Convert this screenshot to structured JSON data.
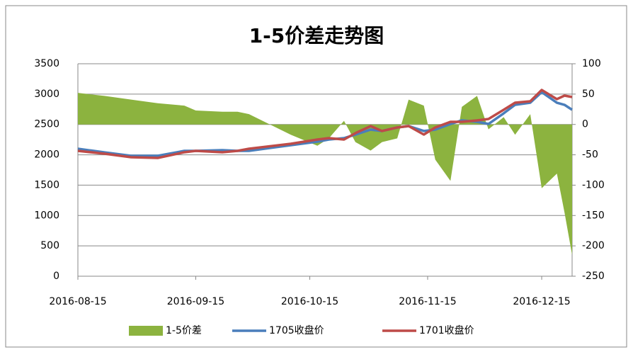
{
  "chart_data": {
    "type": "line",
    "title": "1-5价差走势图",
    "x": [
      "2016-08-15",
      "2016-08-22",
      "2016-08-29",
      "2016-09-05",
      "2016-09-12",
      "2016-09-15",
      "2016-09-22",
      "2016-09-26",
      "2016-09-29",
      "2016-10-10",
      "2016-10-17",
      "2016-10-20",
      "2016-10-24",
      "2016-10-27",
      "2016-10-31",
      "2016-11-03",
      "2016-11-07",
      "2016-11-10",
      "2016-11-14",
      "2016-11-17",
      "2016-11-21",
      "2016-11-24",
      "2016-11-28",
      "2016-12-01",
      "2016-12-05",
      "2016-12-08",
      "2016-12-12",
      "2016-12-15",
      "2016-12-19",
      "2016-12-21",
      "2016-12-23"
    ],
    "xlim": [
      "2016-08-15",
      "2016-12-23"
    ],
    "xticks": [
      "2016-08-15",
      "2016-09-15",
      "2016-10-15",
      "2016-11-15",
      "2016-12-15"
    ],
    "ylim": [
      0,
      3500
    ],
    "yticks": [
      0,
      500,
      1000,
      1500,
      2000,
      2500,
      3000,
      3500
    ],
    "y2lim": [
      -250,
      100
    ],
    "y2ticks": [
      -250,
      -200,
      -150,
      -100,
      -50,
      0,
      50,
      100
    ],
    "grid": true,
    "legend": "bottom",
    "series": [
      {
        "name": "1-5价差",
        "type": "area",
        "axis": "y2",
        "color": "#8cb33f",
        "values": [
          52,
          47,
          41,
          35,
          31,
          23,
          21,
          21,
          17,
          -17,
          -35,
          -23,
          6,
          -29,
          -43,
          -29,
          -23,
          41,
          31,
          -58,
          -93,
          29,
          47,
          -8,
          12,
          -17,
          17,
          -105,
          -81,
          -145,
          -215
        ]
      },
      {
        "name": "1705收盘价",
        "type": "line",
        "color": "#4a7ebb",
        "values": [
          2100,
          2040,
          1983,
          1983,
          2065,
          2065,
          2077,
          2065,
          2065,
          2158,
          2217,
          2252,
          2275,
          2333,
          2415,
          2392,
          2450,
          2473,
          2392,
          2415,
          2508,
          2567,
          2543,
          2508,
          2683,
          2823,
          2858,
          3033,
          2858,
          2823,
          2742
        ]
      },
      {
        "name": "1701收盘价",
        "type": "line",
        "color": "#be4b48",
        "values": [
          2065,
          2018,
          1960,
          1948,
          2042,
          2065,
          2042,
          2065,
          2100,
          2182,
          2252,
          2275,
          2252,
          2357,
          2473,
          2392,
          2450,
          2473,
          2333,
          2450,
          2543,
          2543,
          2567,
          2590,
          2742,
          2858,
          2882,
          3068,
          2917,
          2975,
          2952
        ]
      }
    ]
  }
}
